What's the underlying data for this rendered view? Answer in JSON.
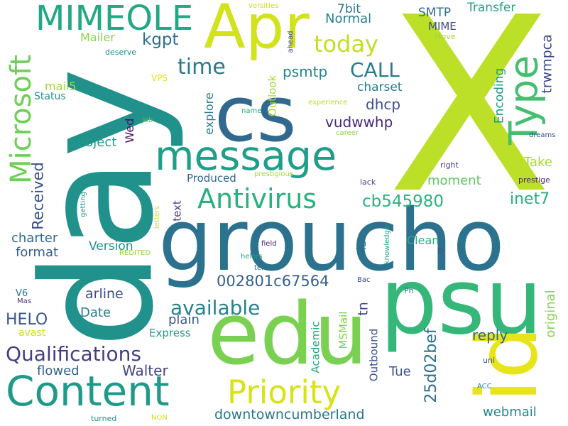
{
  "word_cloud": {
    "background": "#ffffff",
    "words": [
      {
        "text": "X",
        "color": "#bcdf27"
      },
      {
        "text": "day",
        "color": "#21918c"
      },
      {
        "text": "groucho",
        "color": "#2c728e"
      },
      {
        "text": "cs",
        "color": "#31688e"
      },
      {
        "text": "psu",
        "color": "#35b779"
      },
      {
        "text": "edu",
        "color": "#7ad151"
      },
      {
        "text": "Apr",
        "color": "#d2e21b"
      },
      {
        "text": "id",
        "color": "#e7e419"
      },
      {
        "text": "message",
        "color": "#1f9e89"
      },
      {
        "text": "Content",
        "color": "#1f9a8a"
      },
      {
        "text": "Type",
        "color": "#44bf70"
      },
      {
        "text": "Microsoft",
        "color": "#6ece58"
      },
      {
        "text": "MIMEOLE",
        "color": "#22a884"
      },
      {
        "text": "Priority",
        "color": "#d8e219"
      },
      {
        "text": "Antivirus",
        "color": "#2ab07f"
      },
      {
        "text": "Qualifications",
        "color": "#433e85"
      },
      {
        "text": "available",
        "color": "#26828e"
      },
      {
        "text": "today",
        "color": "#c2df23"
      },
      {
        "text": "time",
        "color": "#2a788e"
      },
      {
        "text": "CALL",
        "color": "#287c8e"
      },
      {
        "text": "cb545980",
        "color": "#2db27d"
      },
      {
        "text": "002801c67564",
        "color": "#355f8d"
      },
      {
        "text": "psmtp",
        "color": "#25848e"
      },
      {
        "text": "kgpt",
        "color": "#2e6e8e"
      },
      {
        "text": "Received",
        "color": "#3b528b"
      },
      {
        "text": "inet7",
        "color": "#29af7f"
      },
      {
        "text": "trwmpca",
        "color": "#3e4989"
      },
      {
        "text": "vudwwhp",
        "color": "#482878"
      },
      {
        "text": "dhcp",
        "color": "#3c4f8a"
      },
      {
        "text": "Encoding",
        "color": "#1f998a"
      },
      {
        "text": "25d02bef",
        "color": "#2d708e"
      },
      {
        "text": "downtowncumberland",
        "color": "#2a768e"
      },
      {
        "text": "HELO",
        "color": "#38588c"
      },
      {
        "text": "Walter",
        "color": "#3f4788"
      },
      {
        "text": "reply",
        "color": "#30678d"
      },
      {
        "text": "webmail",
        "color": "#23888e"
      },
      {
        "text": "original",
        "color": "#84d44b"
      },
      {
        "text": "charter",
        "color": "#2f6b8e"
      },
      {
        "text": "format",
        "color": "#34618d"
      },
      {
        "text": "Take",
        "color": "#a5db36"
      },
      {
        "text": "moment",
        "color": "#5ec962"
      },
      {
        "text": "plain",
        "color": "#365c8d"
      },
      {
        "text": "Date",
        "color": "#297b8e"
      },
      {
        "text": "arline",
        "color": "#3d4d8a"
      },
      {
        "text": "flowed",
        "color": "#33638d"
      },
      {
        "text": "Version",
        "color": "#218f8d"
      },
      {
        "text": "tn",
        "color": "#404688"
      },
      {
        "text": "Tue",
        "color": "#3a548c"
      },
      {
        "text": "Normal",
        "color": "#27808e"
      },
      {
        "text": "Transfer",
        "color": "#1fa287"
      },
      {
        "text": "Subject",
        "color": "#1e9b8a"
      },
      {
        "text": "Wed",
        "color": "#471063"
      },
      {
        "text": "charset",
        "color": "#287d8e"
      },
      {
        "text": "iso",
        "color": "#2b748e"
      },
      {
        "text": "SMTP",
        "color": "#2f6c8e"
      },
      {
        "text": "MIME",
        "color": "#3e4a89"
      },
      {
        "text": "7bit",
        "color": "#29798e"
      },
      {
        "text": "Mailer",
        "color": "#8bd646"
      },
      {
        "text": "explore",
        "color": "#2a778e"
      },
      {
        "text": "text",
        "color": "#443983"
      },
      {
        "text": "Outlook",
        "color": "#a8db34"
      },
      {
        "text": "mail5",
        "color": "#9bd93c"
      },
      {
        "text": "Status",
        "color": "#1f958b"
      },
      {
        "text": "Clean",
        "color": "#2ab07f"
      },
      {
        "text": "Express",
        "color": "#1fa088"
      },
      {
        "text": "Academic",
        "color": "#21a685"
      },
      {
        "text": "MSMail",
        "color": "#7ad151"
      },
      {
        "text": "Outbound",
        "color": "#3a548c"
      },
      {
        "text": "Produced",
        "color": "#31668e"
      },
      {
        "text": "V6",
        "color": "#2c718e"
      },
      {
        "text": "avast",
        "color": "#d0e11c"
      },
      {
        "text": "VPS",
        "color": "#e5e419"
      },
      {
        "text": "deserve",
        "color": "#24868e"
      },
      {
        "text": "Move",
        "color": "#a0da39"
      },
      {
        "text": "versities",
        "color": "#c8e020"
      },
      {
        "text": "ahead",
        "color": "#3f4889"
      },
      {
        "text": "experience",
        "color": "#bade28"
      },
      {
        "text": "career",
        "color": "#8bd646"
      },
      {
        "text": "name",
        "color": "#25ab82"
      },
      {
        "text": "job",
        "color": "#5cc863"
      },
      {
        "text": "dreams",
        "color": "#3b518b"
      },
      {
        "text": "prestigious",
        "color": "#a5db36"
      },
      {
        "text": "right",
        "color": "#433d84"
      },
      {
        "text": "prestige",
        "color": "#481f70"
      },
      {
        "text": "lack",
        "color": "#414487"
      },
      {
        "text": "getting",
        "color": "#1f958b"
      },
      {
        "text": "letters",
        "color": "#cde11d"
      },
      {
        "text": "REDITED",
        "color": "#93d741"
      },
      {
        "text": "field",
        "color": "#482475"
      },
      {
        "text": "helors",
        "color": "#1fa187"
      },
      {
        "text": "ters",
        "color": "#2f6c8e"
      },
      {
        "text": "knowledge",
        "color": "#1fa187"
      },
      {
        "text": "D",
        "color": "#3b528b"
      },
      {
        "text": "Mas",
        "color": "#46337f"
      },
      {
        "text": "Bac",
        "color": "#3f4788"
      },
      {
        "text": "Ph",
        "color": "#2d708e"
      },
      {
        "text": "uni",
        "color": "#3b528b"
      },
      {
        "text": "ACC",
        "color": "#25858e"
      },
      {
        "text": "turned",
        "color": "#20928c"
      },
      {
        "text": "NON",
        "color": "#d0e11c"
      }
    ]
  }
}
